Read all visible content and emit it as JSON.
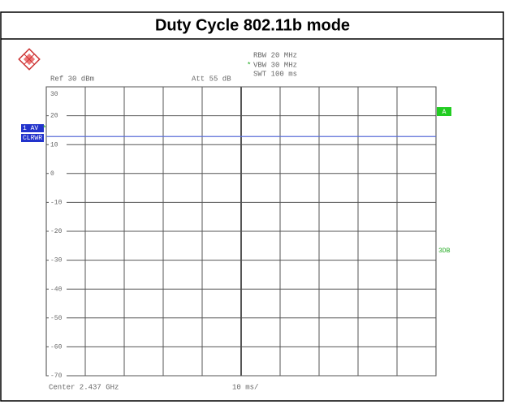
{
  "title": "Duty Cycle 802.11b mode",
  "chart_data": {
    "type": "line",
    "header": {
      "ref": "Ref  30 dBm",
      "att": "Att  55 dB",
      "rbw": "RBW 20 MHz",
      "star": "*",
      "vbw": "VBW 30 MHz",
      "swt": "SWT 100 ms"
    },
    "trace_labels": [
      "1 AV",
      "CLRWR"
    ],
    "side_labels": [
      "A",
      "3DB"
    ],
    "x_label_left": "Center 2.437 GHz",
    "x_label_center": "10 ms/",
    "xlim": [
      0,
      100
    ],
    "ylim": [
      -70,
      30
    ],
    "yticks": [
      30,
      20,
      10,
      0,
      -10,
      -20,
      -30,
      -40,
      -50,
      -60,
      -70
    ],
    "x": [
      0,
      10,
      20,
      30,
      40,
      50,
      60,
      70,
      80,
      90,
      100
    ],
    "series": [
      {
        "color": "#5b6fd8",
        "values": [
          12.8,
          12.8,
          12.8,
          12.8,
          12.8,
          12.8,
          12.8,
          12.8,
          12.8,
          12.8,
          12.8
        ]
      }
    ]
  }
}
